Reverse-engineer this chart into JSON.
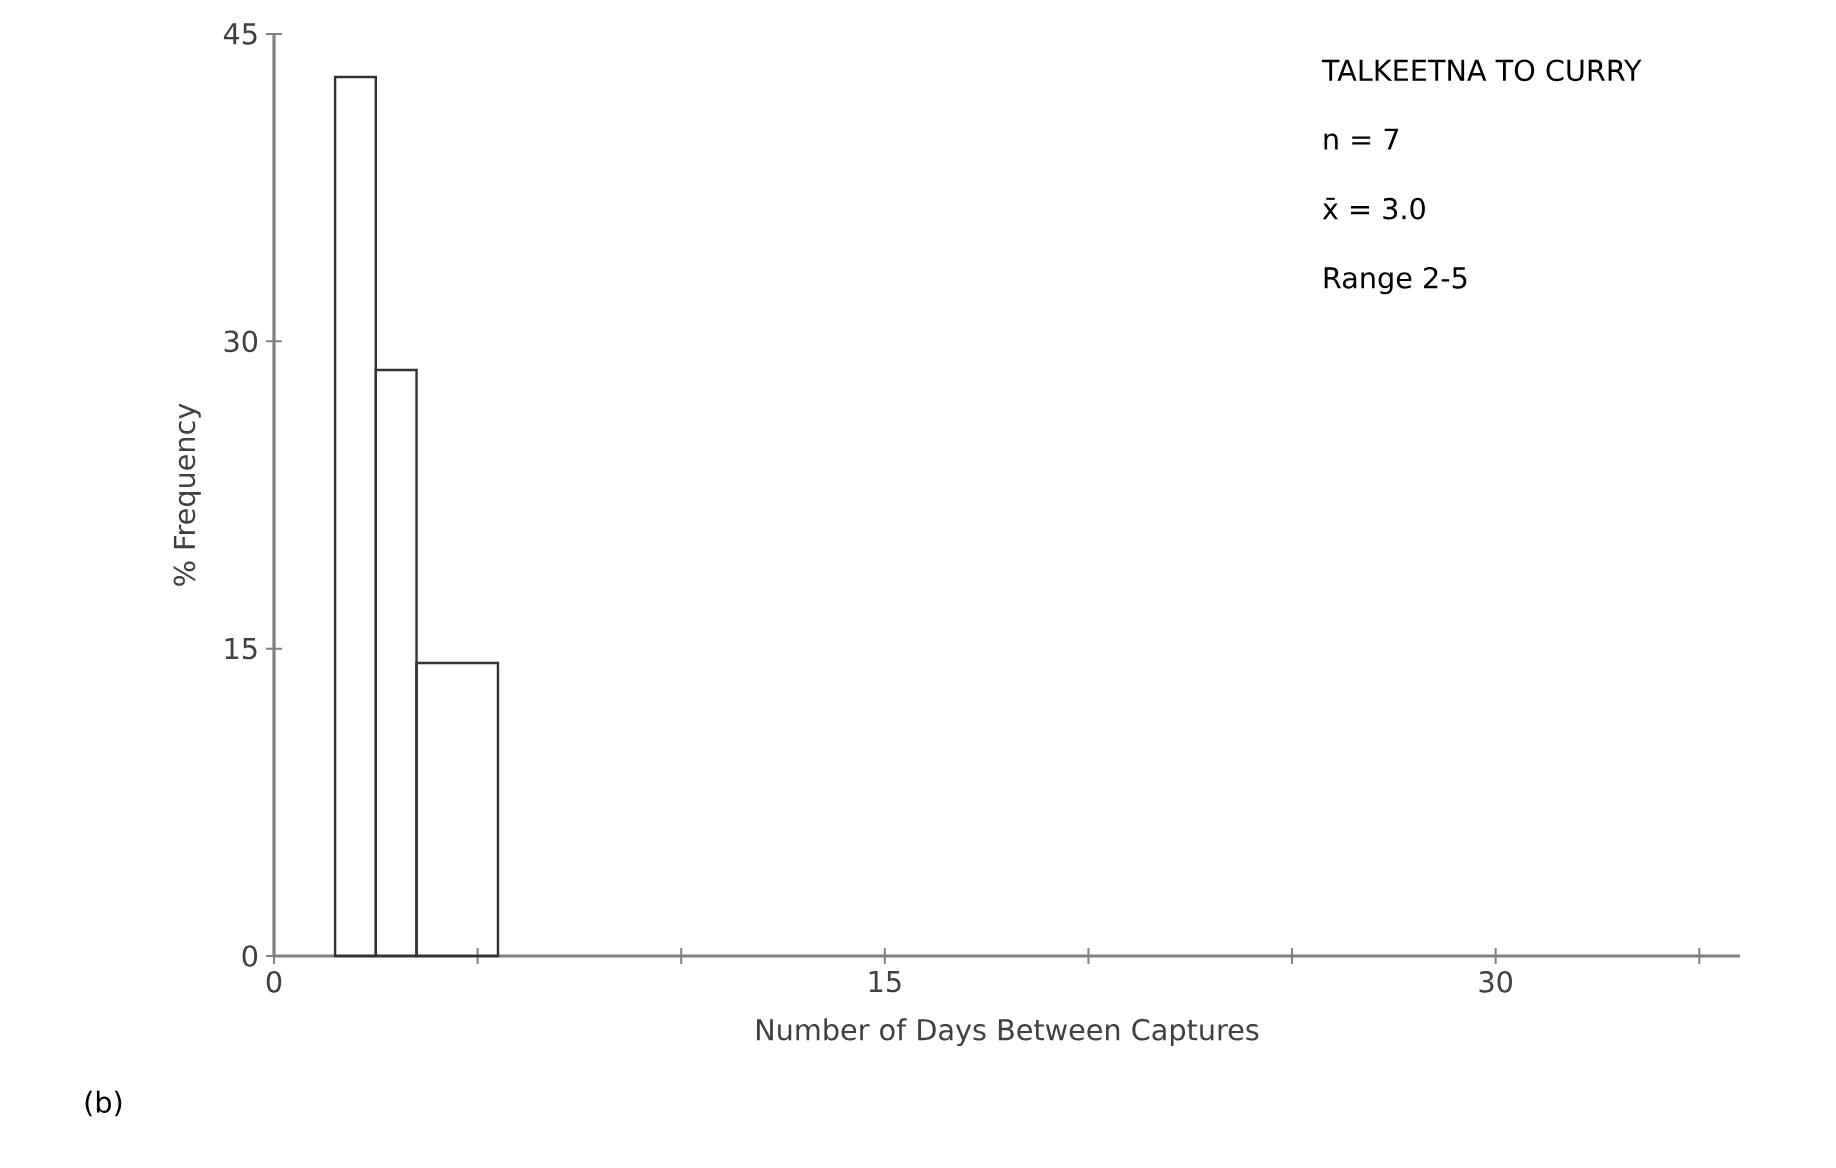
{
  "chart_data": {
    "type": "histogram",
    "xlabel": "Number of Days Between Captures",
    "ylabel": "% Frequency",
    "bins": [
      1.5,
      2.5,
      3.5,
      5.5
    ],
    "values": [
      42.9,
      28.6,
      14.3
    ],
    "color": "#333333",
    "xlim": [
      0,
      36
    ],
    "xticks": [
      0,
      {
        "value": 5,
        "label": null
      },
      {
        "value": 10,
        "label": null
      },
      15,
      {
        "value": 20,
        "label": null
      },
      {
        "value": 25,
        "label": null
      },
      30,
      {
        "value": 35,
        "label": null
      }
    ],
    "ylim": [
      0,
      45
    ],
    "yticks": [
      0,
      15,
      30,
      45
    ],
    "annotations": [
      "TALKEETNA TO CURRY",
      "n = 7",
      "x̄ = 3.0",
      "Range 2-5",
      "(b)"
    ]
  }
}
